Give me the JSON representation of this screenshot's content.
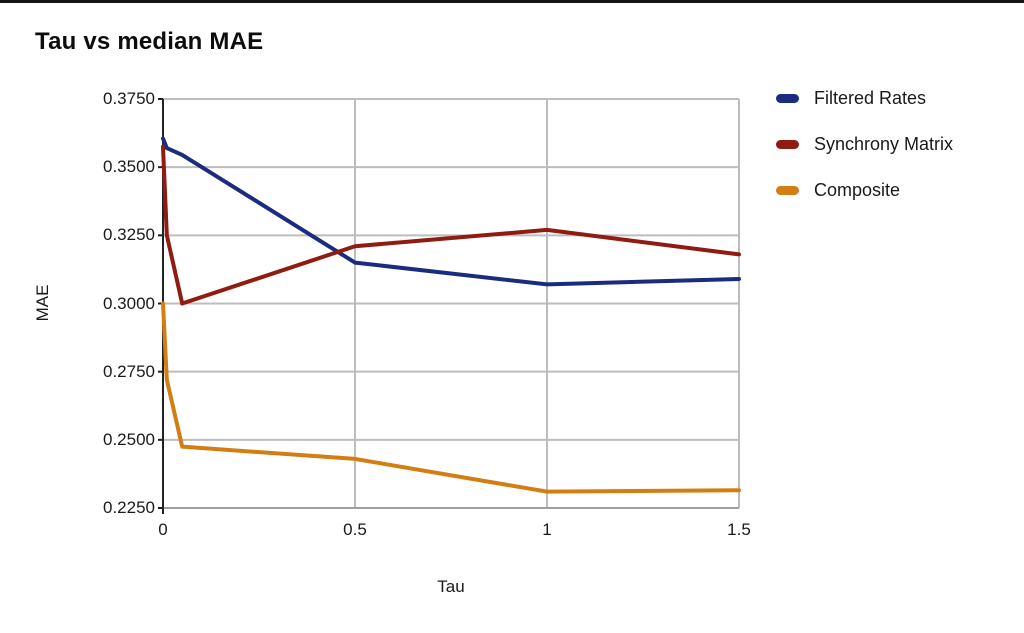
{
  "window": {
    "background": "#ffffff",
    "top_border_color": "#141414"
  },
  "chart_data": {
    "type": "line",
    "title": "Tau vs median MAE",
    "xlabel": "Tau",
    "ylabel": "MAE",
    "xlim": [
      0,
      1.5
    ],
    "ylim": [
      0.225,
      0.375
    ],
    "x_ticks": [
      0,
      0.5,
      1,
      1.5
    ],
    "x_tick_labels": [
      "0",
      "0.5",
      "1",
      "1.5"
    ],
    "y_ticks": [
      0.225,
      0.25,
      0.275,
      0.3,
      0.325,
      0.35,
      0.375
    ],
    "y_tick_labels": [
      "0.2250",
      "0.2500",
      "0.2750",
      "0.3000",
      "0.3250",
      "0.3500",
      "0.3750"
    ],
    "grid": true,
    "grid_color": "#bdbdbd",
    "y_axis_color": "#212121",
    "x_axis_color": "#9e9e9e",
    "legend_position": "right-top",
    "x": [
      0,
      0.01,
      0.05,
      0.5,
      1,
      1.5
    ],
    "series": [
      {
        "name": "Filtered Rates",
        "color": "#1b2c80",
        "values": [
          0.3605,
          0.357,
          0.3545,
          0.315,
          0.307,
          0.309
        ]
      },
      {
        "name": "Synchrony Matrix",
        "color": "#8f1b11",
        "values": [
          0.3575,
          0.325,
          0.3,
          0.321,
          0.327,
          0.318
        ]
      },
      {
        "name": "Composite",
        "color": "#d47d15",
        "values": [
          0.3,
          0.272,
          0.2475,
          0.243,
          0.231,
          0.2315
        ]
      }
    ]
  }
}
